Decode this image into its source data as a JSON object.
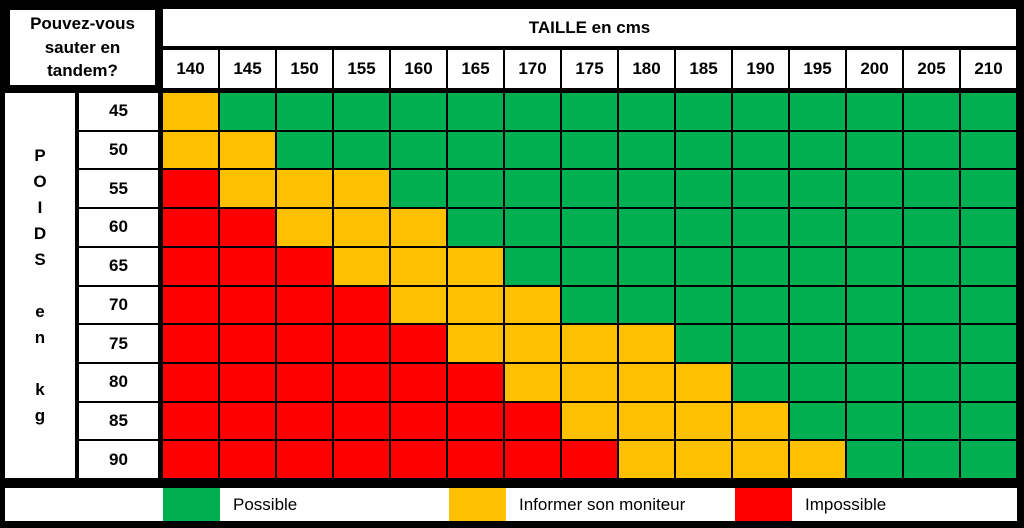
{
  "question": {
    "lines": [
      "Pouvez-vous",
      "sauter en",
      "tandem?"
    ]
  },
  "height_axis": {
    "title": "TAILLE en cms"
  },
  "weight_axis": {
    "label": "POIDS en kg",
    "letters": [
      "P",
      "O",
      "I",
      "D",
      "S",
      "",
      "e",
      "n",
      "",
      "k",
      "g"
    ]
  },
  "legend": [
    {
      "code": "G",
      "label": "Possible"
    },
    {
      "code": "Y",
      "label": "Informer son moniteur"
    },
    {
      "code": "R",
      "label": "Impossible"
    }
  ],
  "colors": {
    "G": "#00B050",
    "Y": "#FFC000",
    "R": "#FF0000"
  },
  "chart_data": {
    "type": "heatmap",
    "title": "Pouvez-vous sauter en tandem?",
    "xlabel": "TAILLE en cms",
    "ylabel": "POIDS en kg",
    "x_categories": [
      "140",
      "145",
      "150",
      "155",
      "160",
      "165",
      "170",
      "175",
      "180",
      "185",
      "190",
      "195",
      "200",
      "205",
      "210"
    ],
    "y_categories": [
      "45",
      "50",
      "55",
      "60",
      "65",
      "70",
      "75",
      "80",
      "85",
      "90"
    ],
    "value_legend": {
      "G": "Possible",
      "Y": "Informer son moniteur",
      "R": "Impossible"
    },
    "values": [
      [
        "Y",
        "G",
        "G",
        "G",
        "G",
        "G",
        "G",
        "G",
        "G",
        "G",
        "G",
        "G",
        "G",
        "G",
        "G"
      ],
      [
        "Y",
        "Y",
        "G",
        "G",
        "G",
        "G",
        "G",
        "G",
        "G",
        "G",
        "G",
        "G",
        "G",
        "G",
        "G"
      ],
      [
        "R",
        "Y",
        "Y",
        "Y",
        "G",
        "G",
        "G",
        "G",
        "G",
        "G",
        "G",
        "G",
        "G",
        "G",
        "G"
      ],
      [
        "R",
        "R",
        "Y",
        "Y",
        "Y",
        "G",
        "G",
        "G",
        "G",
        "G",
        "G",
        "G",
        "G",
        "G",
        "G"
      ],
      [
        "R",
        "R",
        "R",
        "Y",
        "Y",
        "Y",
        "G",
        "G",
        "G",
        "G",
        "G",
        "G",
        "G",
        "G",
        "G"
      ],
      [
        "R",
        "R",
        "R",
        "R",
        "Y",
        "Y",
        "Y",
        "G",
        "G",
        "G",
        "G",
        "G",
        "G",
        "G",
        "G"
      ],
      [
        "R",
        "R",
        "R",
        "R",
        "R",
        "Y",
        "Y",
        "Y",
        "Y",
        "G",
        "G",
        "G",
        "G",
        "G",
        "G"
      ],
      [
        "R",
        "R",
        "R",
        "R",
        "R",
        "R",
        "Y",
        "Y",
        "Y",
        "Y",
        "G",
        "G",
        "G",
        "G",
        "G"
      ],
      [
        "R",
        "R",
        "R",
        "R",
        "R",
        "R",
        "R",
        "Y",
        "Y",
        "Y",
        "Y",
        "G",
        "G",
        "G",
        "G"
      ],
      [
        "R",
        "R",
        "R",
        "R",
        "R",
        "R",
        "R",
        "R",
        "Y",
        "Y",
        "Y",
        "Y",
        "G",
        "G",
        "G"
      ]
    ]
  }
}
